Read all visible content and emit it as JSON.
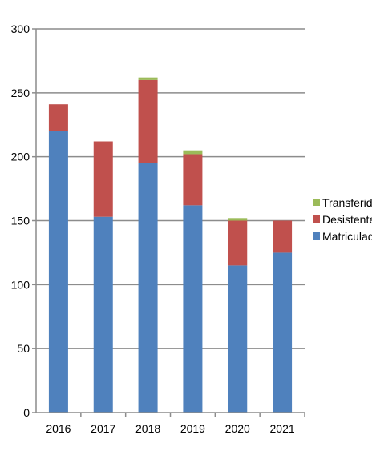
{
  "chart_data": {
    "type": "bar",
    "stacked": true,
    "categories": [
      "2016",
      "2017",
      "2018",
      "2019",
      "2020",
      "2021"
    ],
    "series": [
      {
        "name": "Matriculados",
        "color": "#4f81bd",
        "values": [
          220,
          153,
          195,
          162,
          115,
          125
        ]
      },
      {
        "name": "Desistentes",
        "color": "#c0504d",
        "values": [
          21,
          59,
          65,
          40,
          35,
          25
        ]
      },
      {
        "name": "Transferidos",
        "color": "#9bbb59",
        "values": [
          0,
          0,
          2,
          3,
          2,
          0
        ]
      }
    ],
    "y_ticks": [
      "0",
      "50",
      "100",
      "150",
      "200",
      "250",
      "300"
    ],
    "ylim": [
      0,
      300
    ],
    "grid": true,
    "legend": {
      "position": "right",
      "order": [
        "Transferidos",
        "Desistentes",
        "Matriculados"
      ]
    }
  }
}
